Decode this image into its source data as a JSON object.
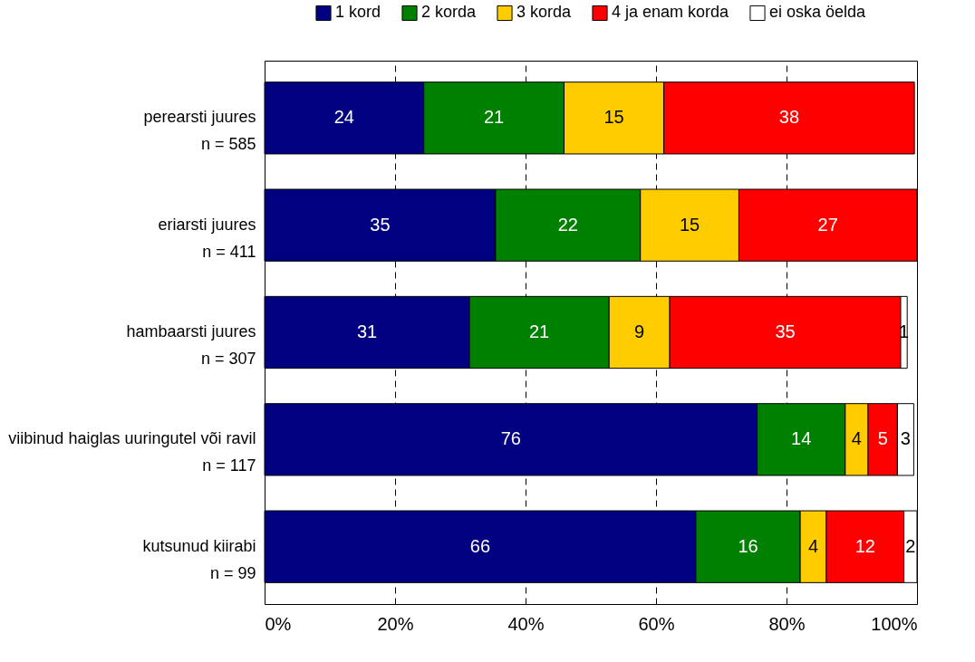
{
  "chart_data": {
    "type": "bar",
    "orientation": "horizontal",
    "stacked": true,
    "categories": [
      "perearsti juures\nn = 585",
      "eriarsti juures\nn = 411",
      "hambaarsti juures\nn = 307",
      "viibinud haiglas uuringutel või ravil\nn = 117",
      "kutsunud kiirabi\nn = 99"
    ],
    "series": [
      {
        "name": "1 kord",
        "color": "#000080",
        "values": [
          24.4,
          35.4,
          31.4,
          75.5,
          66.1
        ],
        "value_labels": [
          "24",
          "35",
          "31",
          "76",
          "66"
        ]
      },
      {
        "name": "2 korda",
        "color": "#008000",
        "values": [
          21.5,
          22.2,
          21.4,
          13.5,
          16.0
        ],
        "value_labels": [
          "21",
          "22",
          "21",
          "14",
          "16"
        ]
      },
      {
        "name": "3 korda",
        "color": "#ffcc00",
        "values": [
          15.3,
          15.1,
          9.3,
          3.5,
          4.0
        ],
        "value_labels": [
          "15",
          "15",
          "9",
          "4",
          "4"
        ]
      },
      {
        "name": "4 ja enam korda",
        "color": "#ff0000",
        "values": [
          38.4,
          27.3,
          35.4,
          4.5,
          11.9
        ],
        "value_labels": [
          "38",
          "27",
          "35",
          "5",
          "12"
        ]
      },
      {
        "name": "ei oska öelda",
        "color": "#ffffff",
        "values": [
          null,
          null,
          1.0,
          2.5,
          2.0
        ],
        "value_labels": [
          null,
          null,
          "1",
          "3",
          "2"
        ]
      }
    ],
    "xlim": [
      0,
      100
    ],
    "xticks": [
      {
        "value": 0,
        "label": "0%"
      },
      {
        "value": 20,
        "label": "20%"
      },
      {
        "value": 40,
        "label": "40%"
      },
      {
        "value": 60,
        "label": "60%"
      },
      {
        "value": 80,
        "label": "80%"
      },
      {
        "value": 100,
        "label": "100%"
      }
    ],
    "grid": "x",
    "legend": "top"
  }
}
